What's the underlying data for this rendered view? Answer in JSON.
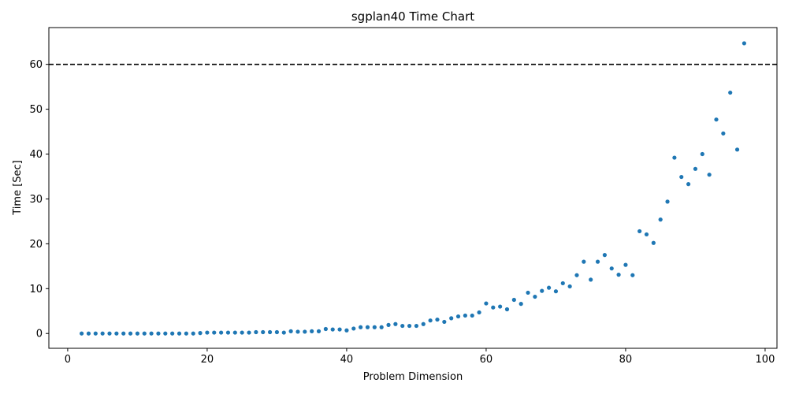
{
  "chart_data": {
    "type": "scatter",
    "title": "sgplan40 Time Chart",
    "xlabel": "Problem Dimension",
    "ylabel": "Time [Sec]",
    "xlim": [
      -2.7,
      101.7
    ],
    "ylim": [
      -3.3,
      68.2
    ],
    "xticks": [
      0,
      20,
      40,
      60,
      80,
      100
    ],
    "yticks": [
      0,
      10,
      20,
      30,
      40,
      50,
      60
    ],
    "grid": false,
    "marker_color": "#1f77b4",
    "threshold": {
      "y": 60,
      "style": "dashed",
      "color": "#000000"
    },
    "series": [
      {
        "x": [
          2,
          3,
          4,
          5,
          6,
          7,
          8,
          9,
          10,
          11,
          12,
          13,
          14,
          15,
          16,
          17,
          18,
          19,
          20,
          21,
          22,
          23,
          24,
          25,
          26,
          27,
          28,
          29,
          30,
          31,
          32,
          33,
          34,
          35,
          36,
          37,
          38,
          39,
          40,
          41,
          42,
          43,
          44,
          45,
          46,
          47,
          48,
          49,
          50,
          51,
          52,
          53,
          54,
          55,
          56,
          57,
          58,
          59,
          60,
          61,
          62,
          63,
          64,
          65,
          66,
          67,
          68,
          69,
          70,
          71,
          72,
          73,
          74,
          75,
          76,
          77,
          78,
          79,
          80,
          81,
          82,
          83,
          84,
          85,
          86,
          87,
          88,
          89,
          90,
          91,
          92,
          93,
          94,
          95,
          96,
          97
        ],
        "y": [
          0.0,
          0.0,
          0.0,
          0.0,
          0.0,
          0.0,
          0.0,
          0.0,
          0.0,
          0.0,
          0.0,
          0.0,
          0.0,
          0.0,
          0.0,
          0.0,
          0.0,
          0.1,
          0.2,
          0.2,
          0.2,
          0.2,
          0.2,
          0.2,
          0.2,
          0.3,
          0.3,
          0.3,
          0.3,
          0.2,
          0.5,
          0.4,
          0.4,
          0.5,
          0.5,
          1.0,
          0.9,
          0.9,
          0.7,
          1.1,
          1.4,
          1.4,
          1.4,
          1.4,
          1.9,
          2.1,
          1.7,
          1.7,
          1.7,
          2.1,
          2.9,
          3.1,
          2.6,
          3.4,
          3.8,
          4.0,
          4.0,
          4.7,
          6.7,
          5.8,
          6.0,
          5.4,
          7.5,
          6.6,
          9.1,
          8.2,
          9.5,
          10.2,
          9.4,
          11.2,
          10.5,
          13.0,
          16.0,
          12.0,
          16.0,
          17.5,
          14.5,
          13.1,
          15.3,
          13.0,
          22.8,
          22.1,
          20.2,
          25.4,
          29.4,
          39.2,
          34.9,
          33.3,
          36.7,
          40.0,
          35.4,
          47.7,
          44.6,
          53.7,
          41.0,
          64.7
        ]
      }
    ]
  }
}
